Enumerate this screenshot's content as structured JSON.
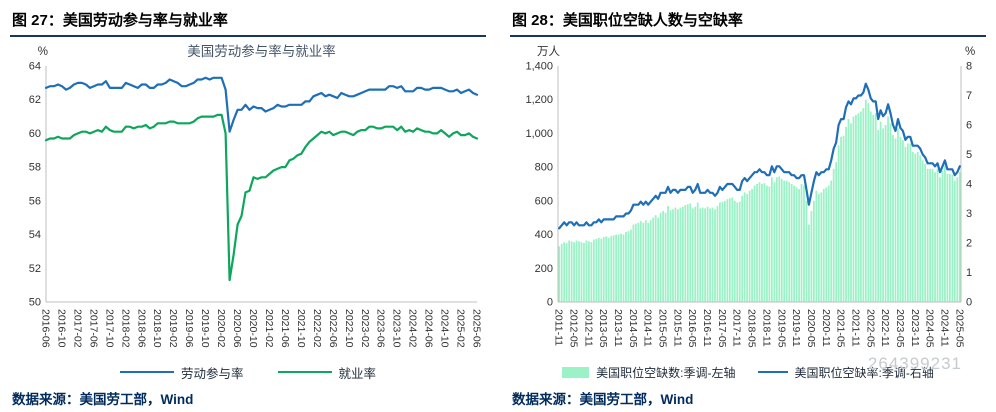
{
  "figures": [
    {
      "caption": "图 27：美国劳动参与率与就业率",
      "source": "数据来源：美国劳工部，Wind"
    },
    {
      "caption": "图 28：美国职位空缺人数与空缺率",
      "source": "数据来源：美国劳工部，Wind",
      "watermark": "264399231"
    }
  ],
  "colors": {
    "blue_line": "#1E6FB8",
    "green_line": "#0EA65C",
    "green_bar": "#9BF2C6",
    "caption_rule": "#17375E",
    "source_text": "#002B5C",
    "axis": "#BFBFBF"
  },
  "chart_data": [
    {
      "type": "line",
      "title": "美国劳动参与率与就业率",
      "xtick_step": 4,
      "xticks": [
        "2016-06",
        "2016-10",
        "2017-02",
        "2017-06",
        "2017-10",
        "2018-02",
        "2018-06",
        "2018-10",
        "2019-02",
        "2019-06",
        "2019-10",
        "2020-02",
        "2020-06",
        "2020-10",
        "2021-02",
        "2021-06",
        "2021-10",
        "2022-02",
        "2022-06",
        "2022-10",
        "2023-02",
        "2023-06",
        "2023-10",
        "2024-02",
        "2024-06",
        "2024-10",
        "2025-02",
        "2025-06"
      ],
      "x_start": "2016-06",
      "x_end": "2025-06",
      "x_freq": "monthly",
      "axes": {
        "left": {
          "unit": "%",
          "min": 50,
          "max": 64,
          "step": 2
        }
      },
      "legend_position": "bottom",
      "grid": false,
      "series": [
        {
          "name": "劳动参与率",
          "type": "line",
          "axis": "left",
          "color": "#1E6FB8",
          "values": [
            62.7,
            62.8,
            62.8,
            62.9,
            62.8,
            62.6,
            62.7,
            62.9,
            63.0,
            63.0,
            62.9,
            62.7,
            62.8,
            62.9,
            62.9,
            63.1,
            62.7,
            62.7,
            62.7,
            62.7,
            63.0,
            62.9,
            62.8,
            62.7,
            62.9,
            62.9,
            62.7,
            62.7,
            62.9,
            62.9,
            63.0,
            63.2,
            63.1,
            63.0,
            62.8,
            62.8,
            62.9,
            63.0,
            63.2,
            63.2,
            63.3,
            63.2,
            63.3,
            63.3,
            63.3,
            62.6,
            60.1,
            60.8,
            61.4,
            61.4,
            61.7,
            61.4,
            61.6,
            61.5,
            61.5,
            61.3,
            61.4,
            61.5,
            61.7,
            61.6,
            61.6,
            61.7,
            61.7,
            61.7,
            61.7,
            61.9,
            61.9,
            62.2,
            62.3,
            62.4,
            62.2,
            62.3,
            62.2,
            62.1,
            62.4,
            62.3,
            62.2,
            62.2,
            62.3,
            62.4,
            62.5,
            62.6,
            62.6,
            62.6,
            62.6,
            62.6,
            62.8,
            62.8,
            62.7,
            62.8,
            62.5,
            62.5,
            62.5,
            62.7,
            62.7,
            62.6,
            62.6,
            62.7,
            62.7,
            62.7,
            62.6,
            62.5,
            62.5,
            62.6,
            62.4,
            62.5,
            62.6,
            62.4,
            62.3
          ]
        },
        {
          "name": "就业率",
          "type": "line",
          "axis": "left",
          "color": "#0EA65C",
          "values": [
            59.6,
            59.7,
            59.7,
            59.8,
            59.7,
            59.7,
            59.7,
            59.9,
            60.0,
            60.1,
            60.1,
            60.0,
            60.1,
            60.2,
            60.1,
            60.4,
            60.2,
            60.1,
            60.1,
            60.1,
            60.4,
            60.4,
            60.3,
            60.4,
            60.4,
            60.5,
            60.3,
            60.4,
            60.6,
            60.6,
            60.6,
            60.7,
            60.7,
            60.6,
            60.6,
            60.6,
            60.6,
            60.7,
            60.9,
            61.0,
            61.0,
            61.0,
            61.0,
            61.1,
            61.1,
            60.0,
            51.3,
            52.8,
            54.6,
            55.1,
            56.5,
            56.6,
            57.4,
            57.3,
            57.4,
            57.4,
            57.6,
            57.8,
            57.9,
            58.0,
            58.0,
            58.4,
            58.5,
            58.7,
            58.8,
            59.2,
            59.5,
            59.7,
            59.9,
            60.1,
            60.0,
            60.1,
            59.9,
            60.0,
            60.1,
            60.1,
            60.0,
            59.9,
            60.1,
            60.2,
            60.2,
            60.4,
            60.4,
            60.3,
            60.3,
            60.4,
            60.4,
            60.4,
            60.2,
            60.4,
            60.1,
            60.2,
            60.1,
            60.3,
            60.2,
            60.1,
            60.1,
            60.0,
            60.0,
            60.2,
            60.0,
            59.8,
            60.0,
            60.1,
            59.9,
            59.9,
            60.0,
            59.8,
            59.7
          ]
        }
      ]
    },
    {
      "type": "bar+line",
      "title": "",
      "xtick_step": 6,
      "xticks": [
        "2011-11",
        "2012-05",
        "2012-11",
        "2013-05",
        "2013-11",
        "2014-05",
        "2014-11",
        "2015-05",
        "2015-11",
        "2016-05",
        "2016-11",
        "2017-05",
        "2017-11",
        "2018-05",
        "2018-11",
        "2019-05",
        "2019-11",
        "2020-05",
        "2020-11",
        "2021-05",
        "2021-11",
        "2022-05",
        "2022-11",
        "2023-05",
        "2023-11",
        "2024-05",
        "2024-11",
        "2025-05"
      ],
      "x_start": "2011-11",
      "x_end": "2025-05",
      "x_freq": "monthly",
      "axes": {
        "left": {
          "unit": "万人",
          "min": 0,
          "max": 1400,
          "step": 200
        },
        "right": {
          "unit": "%",
          "min": 0,
          "max": 8,
          "step": 1
        }
      },
      "legend_position": "bottom",
      "grid": false,
      "series": [
        {
          "name": "美国职位空缺数:季调-左轴",
          "type": "bar",
          "axis": "left",
          "color": "#9BF2C6",
          "values": [
            330,
            345,
            355,
            350,
            365,
            360,
            355,
            365,
            360,
            355,
            350,
            365,
            360,
            355,
            370,
            375,
            380,
            375,
            385,
            390,
            380,
            390,
            395,
            400,
            400,
            405,
            400,
            415,
            420,
            430,
            460,
            465,
            470,
            480,
            470,
            485,
            470,
            485,
            500,
            515,
            500,
            530,
            540,
            530,
            570,
            545,
            550,
            560,
            550,
            560,
            565,
            575,
            580,
            585,
            555,
            565,
            590,
            555,
            560,
            555,
            565,
            555,
            560,
            550,
            570,
            590,
            595,
            600,
            610,
            615,
            620,
            600,
            590,
            595,
            630,
            650,
            640,
            660,
            670,
            690,
            700,
            710,
            700,
            705,
            690,
            685,
            740,
            710,
            740,
            745,
            730,
            720,
            720,
            710,
            700,
            690,
            680,
            670,
            700,
            690,
            600,
            460,
            540,
            600,
            660,
            640,
            650,
            670,
            680,
            690,
            720,
            790,
            830,
            930,
            980,
            985,
            1040,
            1085,
            1060,
            1100,
            1110,
            1120,
            1130,
            1150,
            1200,
            1180,
            1130,
            1110,
            1120,
            1020,
            1070,
            1030,
            1050,
            1100,
            1060,
            990,
            970,
            1030,
            980,
            960,
            920,
            940,
            940,
            890,
            880,
            890,
            870,
            840,
            820,
            790,
            790,
            790,
            770,
            790,
            740,
            780,
            810,
            760,
            760,
            755,
            720,
            740,
            770
          ]
        },
        {
          "name": "美国职位空缺率:季调-右轴",
          "type": "line",
          "axis": "right",
          "color": "#1E6FB8",
          "values": [
            2.5,
            2.6,
            2.7,
            2.6,
            2.7,
            2.7,
            2.6,
            2.7,
            2.6,
            2.6,
            2.6,
            2.7,
            2.6,
            2.6,
            2.7,
            2.7,
            2.8,
            2.7,
            2.8,
            2.8,
            2.8,
            2.8,
            2.8,
            2.9,
            2.9,
            2.9,
            2.9,
            3.0,
            3.0,
            3.1,
            3.3,
            3.3,
            3.3,
            3.4,
            3.3,
            3.4,
            3.3,
            3.4,
            3.5,
            3.6,
            3.5,
            3.7,
            3.7,
            3.7,
            3.9,
            3.7,
            3.8,
            3.8,
            3.7,
            3.8,
            3.8,
            3.8,
            3.9,
            3.9,
            3.7,
            3.8,
            4.0,
            3.7,
            3.7,
            3.7,
            3.8,
            3.7,
            3.7,
            3.6,
            3.7,
            3.9,
            3.8,
            3.9,
            4.0,
            4.0,
            4.0,
            3.9,
            3.8,
            3.8,
            4.1,
            4.2,
            4.1,
            4.2,
            4.3,
            4.4,
            4.4,
            4.5,
            4.4,
            4.4,
            4.3,
            4.3,
            4.6,
            4.4,
            4.6,
            4.6,
            4.5,
            4.4,
            4.4,
            4.4,
            4.3,
            4.3,
            4.2,
            4.2,
            4.3,
            4.3,
            3.8,
            3.3,
            3.7,
            4.1,
            4.4,
            4.3,
            4.4,
            4.4,
            4.5,
            4.5,
            4.8,
            5.2,
            5.4,
            6.0,
            6.2,
            6.2,
            6.6,
            6.8,
            6.7,
            6.9,
            6.9,
            7.0,
            7.0,
            7.1,
            7.4,
            7.2,
            6.9,
            6.8,
            6.8,
            6.2,
            6.5,
            6.3,
            6.4,
            6.7,
            6.4,
            6.0,
            5.8,
            6.2,
            5.9,
            5.8,
            5.5,
            5.6,
            5.6,
            5.3,
            5.3,
            5.3,
            5.2,
            5.0,
            4.9,
            4.7,
            4.7,
            4.7,
            4.6,
            4.7,
            4.4,
            4.6,
            4.8,
            4.5,
            4.5,
            4.5,
            4.3,
            4.4,
            4.6
          ]
        }
      ]
    }
  ]
}
